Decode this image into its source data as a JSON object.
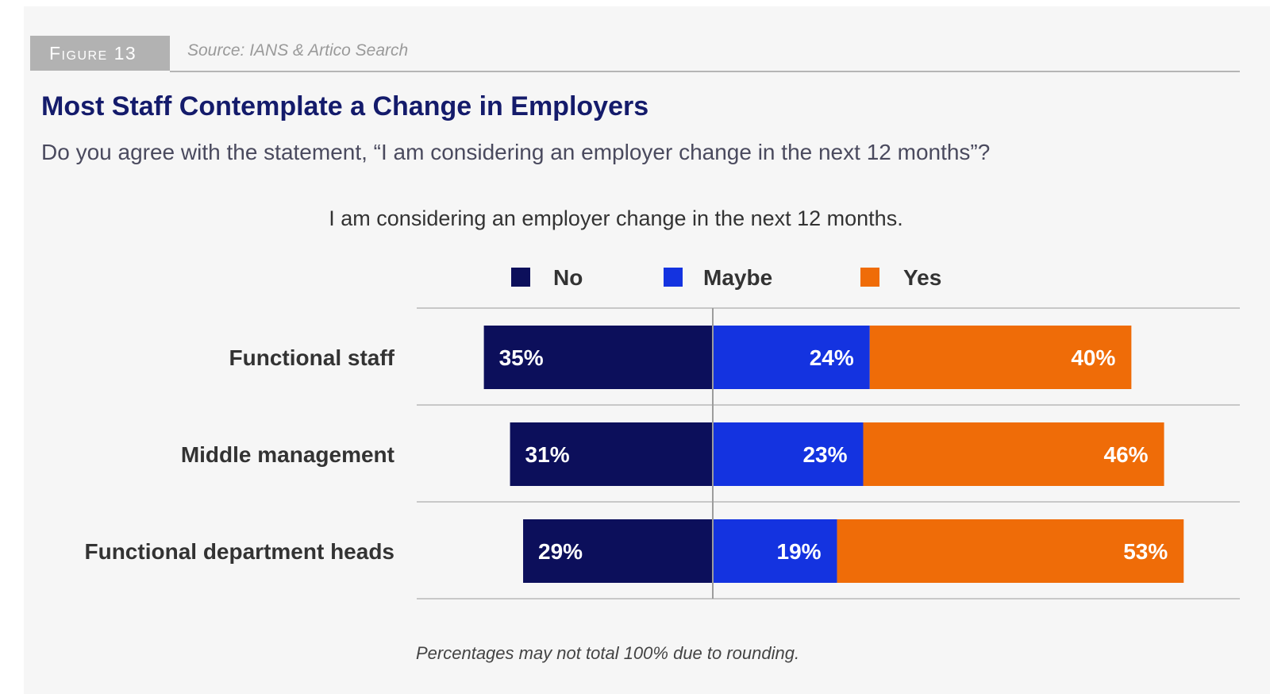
{
  "figure": {
    "tag": "Figure 13",
    "source": "Source: IANS & Artico Search",
    "title": "Most Staff Contemplate a Change in Employers",
    "subtitle": "Do you agree with the statement, “I am considering an employer change in the next 12 months”?",
    "footnote": "Percentages may not total 100% due to rounding."
  },
  "colors": {
    "No": "#0c0f5b",
    "Maybe": "#1433e0",
    "Yes": "#ef6c08"
  },
  "chart_data": {
    "type": "bar",
    "orientation": "horizontal-diverging-stacked",
    "title": "I am considering an employer change in the next 12 months.",
    "categories": [
      "Functional staff",
      "Middle management",
      "Functional department heads"
    ],
    "series": [
      {
        "name": "No",
        "values": [
          35,
          31,
          29
        ]
      },
      {
        "name": "Maybe",
        "values": [
          24,
          23,
          19
        ]
      },
      {
        "name": "Yes",
        "values": [
          40,
          46,
          53
        ]
      }
    ],
    "labels": [
      [
        "35%",
        "24%",
        "40%"
      ],
      [
        "31%",
        "23%",
        "46%"
      ],
      [
        "29%",
        "19%",
        "53%"
      ]
    ],
    "legend_position": "top",
    "unit": "%",
    "xlabel": "",
    "ylabel": ""
  }
}
